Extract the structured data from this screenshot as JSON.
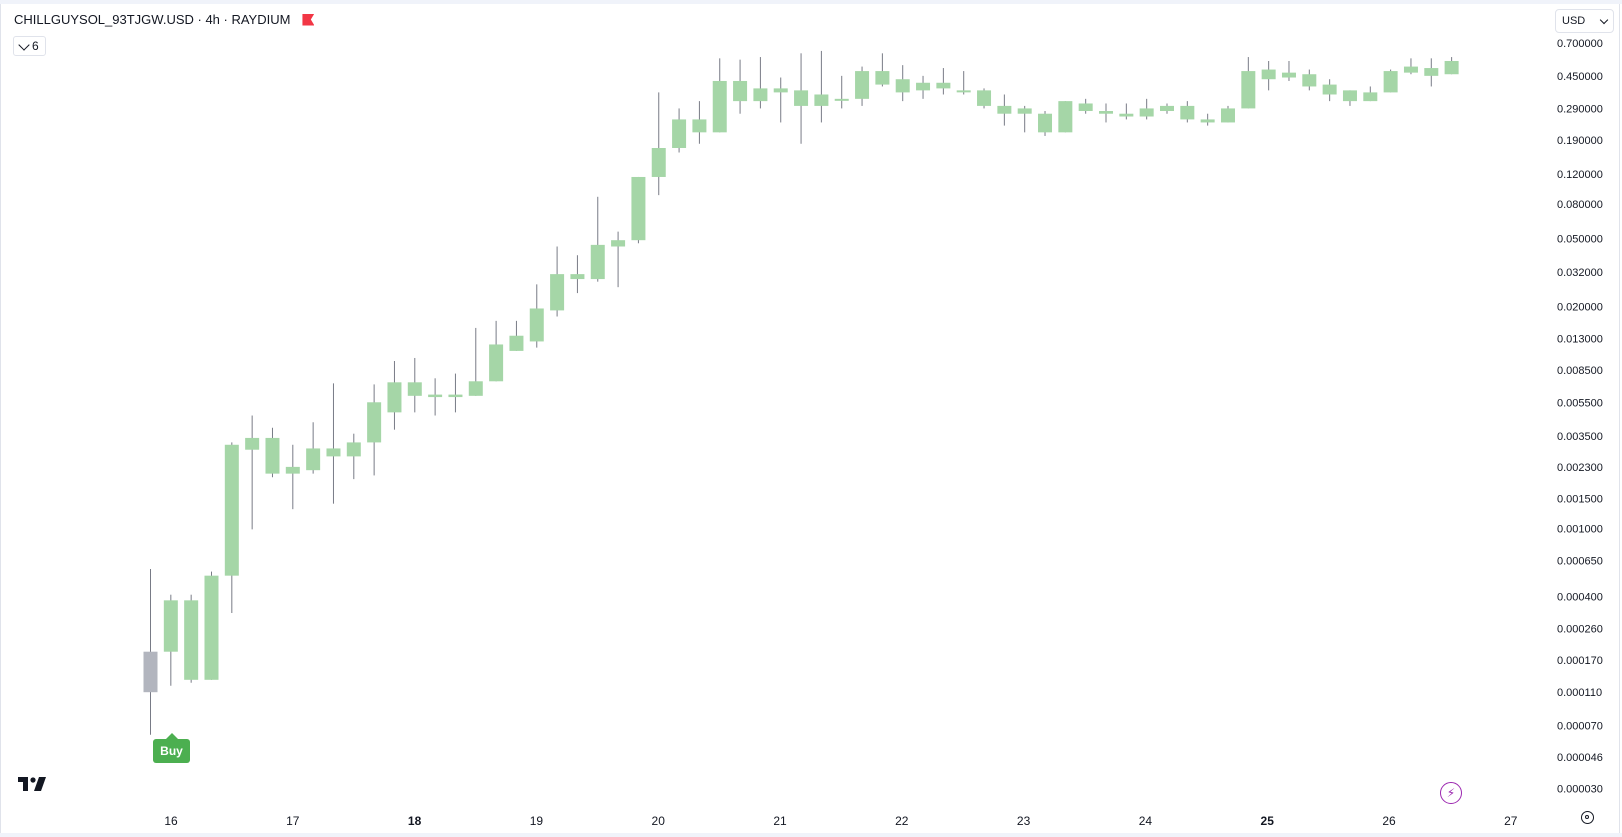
{
  "header": {
    "symbol_line": "CHILLGUYSOL_93TJGW.USD · 4h · RAYDIUM",
    "collapse_count": "6",
    "currency": "USD"
  },
  "markers": {
    "buy_label": "Buy"
  },
  "colors": {
    "up": "#a5d6a7",
    "first": "#b2b5be",
    "wick": "#787b86",
    "buy": "#4caf50",
    "flag": "#f23645"
  },
  "chart_data": {
    "type": "candlestick",
    "y_scale": "log",
    "ylim": [
      2.5e-05,
      0.75
    ],
    "y_ticks": [
      "0.700000",
      "0.450000",
      "0.290000",
      "0.190000",
      "0.120000",
      "0.080000",
      "0.050000",
      "0.032000",
      "0.020000",
      "0.013000",
      "0.008500",
      "0.005500",
      "0.003500",
      "0.002300",
      "0.001500",
      "0.001000",
      "0.000650",
      "0.000400",
      "0.000260",
      "0.000170",
      "0.000110",
      "0.000070",
      "0.000046",
      "0.000030"
    ],
    "x_ticks": [
      {
        "label": "16",
        "bold": false
      },
      {
        "label": "17",
        "bold": false
      },
      {
        "label": "18",
        "bold": true
      },
      {
        "label": "19",
        "bold": false
      },
      {
        "label": "20",
        "bold": false
      },
      {
        "label": "21",
        "bold": false
      },
      {
        "label": "22",
        "bold": false
      },
      {
        "label": "23",
        "bold": false
      },
      {
        "label": "24",
        "bold": false
      },
      {
        "label": "25",
        "bold": true
      },
      {
        "label": "26",
        "bold": false
      },
      {
        "label": "27",
        "bold": false
      }
    ],
    "candles": [
      [
        0.00011,
        0.00019,
        6.2e-05,
        0.00058
      ],
      [
        0.00019,
        0.00038,
        0.00012,
        0.00041
      ],
      [
        0.00013,
        0.00038,
        0.000125,
        0.00041
      ],
      [
        0.00013,
        0.00053,
        0.00013,
        0.00056
      ],
      [
        0.00053,
        0.0031,
        0.00032,
        0.0032
      ],
      [
        0.0029,
        0.0034,
        0.00099,
        0.0046
      ],
      [
        0.0021,
        0.0034,
        0.002,
        0.0039
      ],
      [
        0.0021,
        0.0023,
        0.0013,
        0.0031
      ],
      [
        0.0022,
        0.00295,
        0.0021,
        0.0042
      ],
      [
        0.00265,
        0.00295,
        0.0014,
        0.0071
      ],
      [
        0.00265,
        0.0032,
        0.00195,
        0.0036
      ],
      [
        0.0032,
        0.0055,
        0.00205,
        0.007
      ],
      [
        0.0048,
        0.0072,
        0.0038,
        0.0096
      ],
      [
        0.006,
        0.0072,
        0.0048,
        0.01
      ],
      [
        0.0059,
        0.0061,
        0.0046,
        0.0076
      ],
      [
        0.0059,
        0.0061,
        0.0048,
        0.0081
      ],
      [
        0.006,
        0.0073,
        0.006,
        0.015
      ],
      [
        0.0073,
        0.012,
        0.0073,
        0.0165
      ],
      [
        0.011,
        0.0135,
        0.011,
        0.0165
      ],
      [
        0.0125,
        0.0195,
        0.0115,
        0.027
      ],
      [
        0.019,
        0.031,
        0.0175,
        0.045
      ],
      [
        0.029,
        0.031,
        0.024,
        0.04
      ],
      [
        0.029,
        0.046,
        0.028,
        0.088
      ],
      [
        0.045,
        0.049,
        0.026,
        0.055
      ],
      [
        0.049,
        0.115,
        0.047,
        0.115
      ],
      [
        0.115,
        0.17,
        0.09,
        0.36
      ],
      [
        0.17,
        0.25,
        0.16,
        0.29
      ],
      [
        0.21,
        0.25,
        0.18,
        0.32
      ],
      [
        0.21,
        0.42,
        0.21,
        0.57
      ],
      [
        0.32,
        0.42,
        0.27,
        0.56
      ],
      [
        0.32,
        0.38,
        0.29,
        0.58
      ],
      [
        0.36,
        0.38,
        0.24,
        0.44
      ],
      [
        0.3,
        0.37,
        0.18,
        0.61
      ],
      [
        0.3,
        0.35,
        0.24,
        0.63
      ],
      [
        0.33,
        0.33,
        0.29,
        0.45
      ],
      [
        0.33,
        0.48,
        0.3,
        0.51
      ],
      [
        0.4,
        0.48,
        0.39,
        0.61
      ],
      [
        0.36,
        0.43,
        0.32,
        0.52
      ],
      [
        0.37,
        0.41,
        0.33,
        0.45
      ],
      [
        0.38,
        0.41,
        0.35,
        0.5
      ],
      [
        0.37,
        0.37,
        0.35,
        0.48
      ],
      [
        0.3,
        0.37,
        0.29,
        0.38
      ],
      [
        0.27,
        0.3,
        0.23,
        0.35
      ],
      [
        0.27,
        0.29,
        0.21,
        0.3
      ],
      [
        0.21,
        0.27,
        0.2,
        0.28
      ],
      [
        0.21,
        0.32,
        0.21,
        0.32
      ],
      [
        0.28,
        0.31,
        0.27,
        0.33
      ],
      [
        0.27,
        0.28,
        0.24,
        0.31
      ],
      [
        0.26,
        0.27,
        0.25,
        0.31
      ],
      [
        0.26,
        0.29,
        0.25,
        0.33
      ],
      [
        0.28,
        0.3,
        0.27,
        0.31
      ],
      [
        0.25,
        0.3,
        0.24,
        0.32
      ],
      [
        0.24,
        0.25,
        0.23,
        0.27
      ],
      [
        0.24,
        0.29,
        0.24,
        0.3
      ],
      [
        0.29,
        0.48,
        0.29,
        0.58
      ],
      [
        0.43,
        0.49,
        0.37,
        0.55
      ],
      [
        0.44,
        0.47,
        0.42,
        0.55
      ],
      [
        0.39,
        0.46,
        0.37,
        0.49
      ],
      [
        0.35,
        0.4,
        0.32,
        0.43
      ],
      [
        0.32,
        0.37,
        0.3,
        0.37
      ],
      [
        0.32,
        0.36,
        0.32,
        0.39
      ],
      [
        0.36,
        0.48,
        0.36,
        0.49
      ],
      [
        0.47,
        0.51,
        0.46,
        0.57
      ],
      [
        0.45,
        0.5,
        0.39,
        0.57
      ],
      [
        0.46,
        0.55,
        0.46,
        0.58
      ]
    ]
  }
}
